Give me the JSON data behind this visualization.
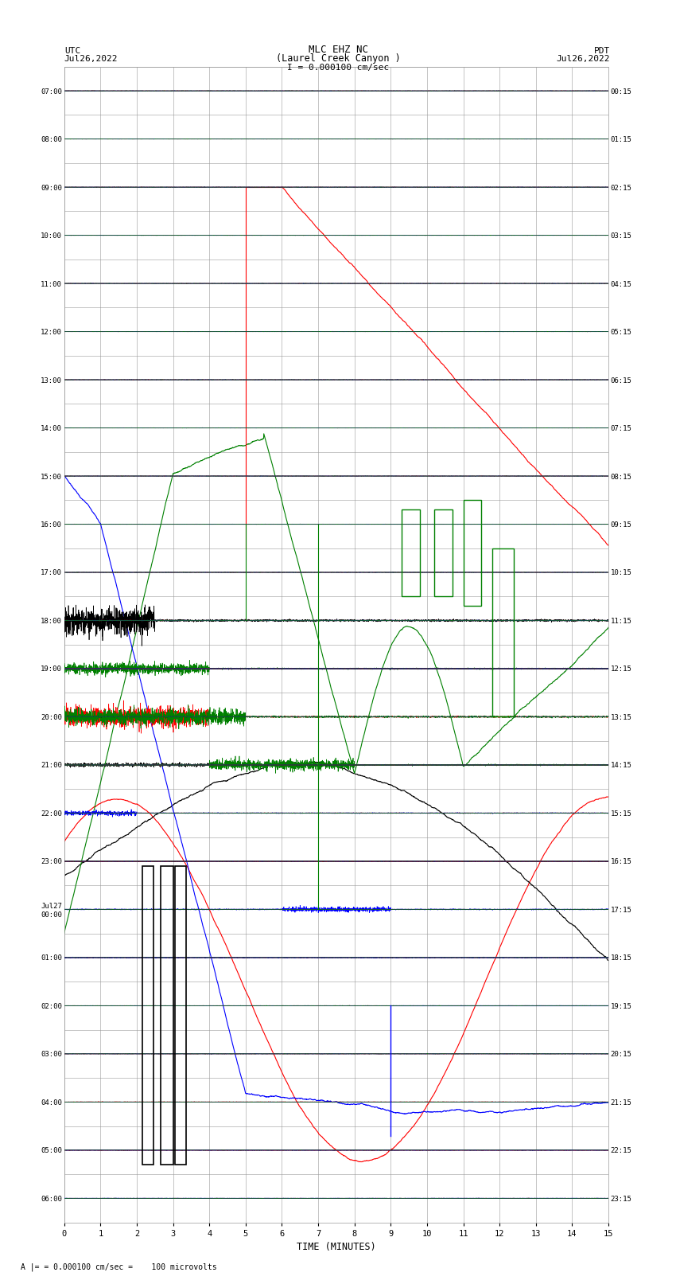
{
  "title_line1": "MLC EHZ NC",
  "title_line2": "(Laurel Creek Canyon )",
  "title_line3": "I = 0.000100 cm/sec",
  "label_utc": "UTC",
  "label_pdt": "PDT",
  "date_left": "Jul26,2022",
  "date_right": "Jul26,2022",
  "xlabel": "TIME (MINUTES)",
  "footer": "= 0.000100 cm/sec =    100 microvolts",
  "left_times": [
    "07:00",
    "08:00",
    "09:00",
    "10:00",
    "11:00",
    "12:00",
    "13:00",
    "14:00",
    "15:00",
    "16:00",
    "17:00",
    "18:00",
    "19:00",
    "20:00",
    "21:00",
    "22:00",
    "23:00",
    "Jul27\n00:00",
    "01:00",
    "02:00",
    "03:00",
    "04:00",
    "05:00",
    "06:00"
  ],
  "right_times": [
    "00:15",
    "01:15",
    "02:15",
    "03:15",
    "04:15",
    "05:15",
    "06:15",
    "07:15",
    "08:15",
    "09:15",
    "10:15",
    "11:15",
    "12:15",
    "13:15",
    "14:15",
    "15:15",
    "16:15",
    "17:15",
    "18:15",
    "19:15",
    "20:15",
    "21:15",
    "22:15",
    "23:15"
  ],
  "xmin": 0,
  "xmax": 15,
  "background_color": "#ffffff",
  "grid_color": "#999999",
  "seismo_color_black": "#000000",
  "seismo_color_red": "#ff0000",
  "seismo_color_blue": "#0000ff",
  "seismo_color_green": "#008000",
  "noise_seed": 42
}
